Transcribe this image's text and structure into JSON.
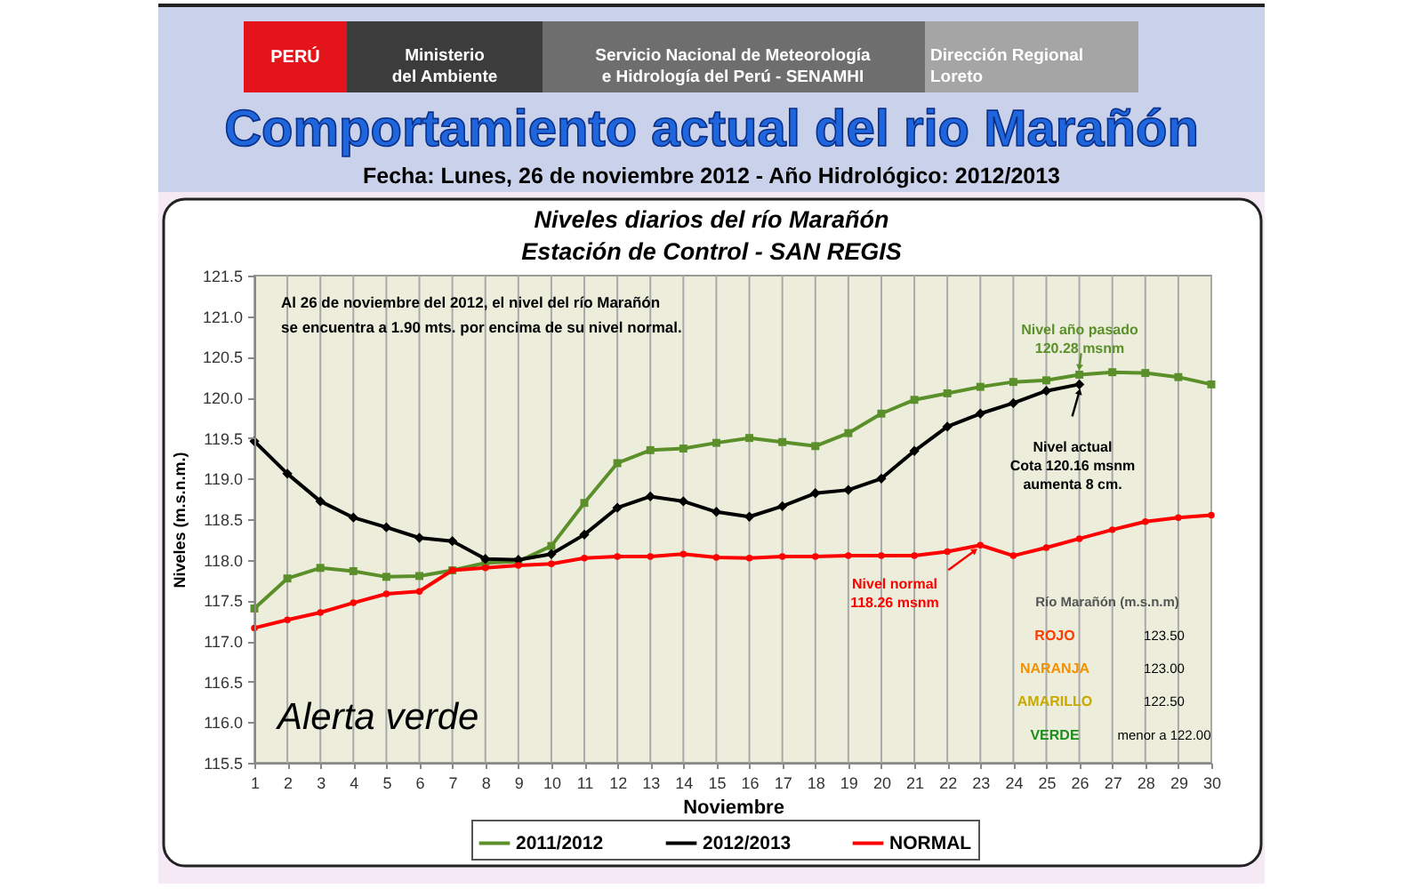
{
  "chart_data": {
    "type": "line",
    "title": "Comportamiento actual del rio Marañón",
    "subtitle": "Fecha: Lunes, 26 de noviembre 2012 - Año Hidrológico: 2012/2013",
    "xlabel": "Noviembre",
    "ylabel": "Niveles (m.s.n.m.)",
    "x": [
      1,
      2,
      3,
      4,
      5,
      6,
      7,
      8,
      9,
      10,
      11,
      12,
      13,
      14,
      15,
      16,
      17,
      18,
      19,
      20,
      21,
      22,
      23,
      24,
      25,
      26,
      27,
      28,
      29,
      30
    ],
    "series": [
      {
        "name": "2011/2012",
        "color": "#5a8f29",
        "marker": "square",
        "values": [
          117.4,
          117.77,
          117.9,
          117.86,
          117.79,
          117.8,
          117.87,
          117.96,
          117.98,
          118.17,
          118.7,
          119.19,
          119.35,
          119.37,
          119.44,
          119.5,
          119.45,
          119.4,
          119.56,
          119.8,
          119.97,
          120.05,
          120.13,
          120.19,
          120.21,
          120.28,
          120.31,
          120.3,
          120.25,
          120.16
        ]
      },
      {
        "name": "2012/2013",
        "color": "#000000",
        "marker": "diamond",
        "values": [
          119.46,
          119.06,
          118.72,
          118.52,
          118.4,
          118.27,
          118.23,
          118.01,
          118.0,
          118.07,
          118.31,
          118.64,
          118.78,
          118.72,
          118.59,
          118.53,
          118.66,
          118.82,
          118.86,
          119.0,
          119.34,
          119.64,
          119.8,
          119.93,
          120.08,
          120.16,
          null,
          null,
          null,
          null
        ]
      },
      {
        "name": "NORMAL",
        "color": "#ff0000",
        "marker": "circle",
        "values": [
          117.16,
          117.26,
          117.35,
          117.47,
          117.58,
          117.61,
          117.87,
          117.9,
          117.93,
          117.95,
          118.02,
          118.04,
          118.04,
          118.07,
          118.03,
          118.02,
          118.04,
          118.04,
          118.05,
          118.05,
          118.05,
          118.1,
          118.18,
          118.05,
          118.15,
          118.26,
          118.37,
          118.47,
          118.52,
          118.55
        ]
      }
    ],
    "xlim": [
      1,
      30
    ],
    "xticks": [
      1,
      2,
      3,
      4,
      5,
      6,
      7,
      8,
      9,
      10,
      11,
      12,
      13,
      14,
      15,
      16,
      17,
      18,
      19,
      20,
      21,
      22,
      23,
      24,
      25,
      26,
      27,
      28,
      29,
      30
    ],
    "ylim": [
      115.5,
      121.5
    ],
    "yticks": [
      115.5,
      {
        "value": 116,
        "label": "116.0"
      },
      116.5,
      {
        "value": 117,
        "label": "117.0"
      },
      117.5,
      {
        "value": 118,
        "label": "118.0"
      },
      118.5,
      {
        "value": 119,
        "label": "119.0"
      },
      119.5,
      {
        "value": 120,
        "label": "120.0"
      },
      120.5,
      {
        "value": 121,
        "label": "121.0"
      },
      121.5
    ],
    "grid": "x",
    "legend": "bottom",
    "line_style": "solid",
    "annotations": [
      "PERÚ",
      "Ministerio\ndel Ambiente",
      "Servicio Nacional de Meteorología\ne Hidrología del Perú - SENAMHI",
      "Dirección Regional\nLoreto",
      "Niveles diarios del río Marañón",
      "Estación de Control - SAN REGIS",
      "Al 26 de noviembre del 2012, el nivel del río Marañón\nse encuentra a 1.90 mts. por encima de su nivel normal.",
      "Nivel año pasado\n120.28 msnm",
      "Nivel actual\nCota 120.16 msnm\naumenta 8 cm.",
      "Nivel normal\n118.26 msnm",
      "Alerta verde",
      "Río Marañón (m.s.n.m)",
      "ROJO",
      "123.50",
      "NARANJA",
      "123.00",
      "AMARILLO",
      "122.50",
      "VERDE",
      "menor a 122.00"
    ]
  }
}
